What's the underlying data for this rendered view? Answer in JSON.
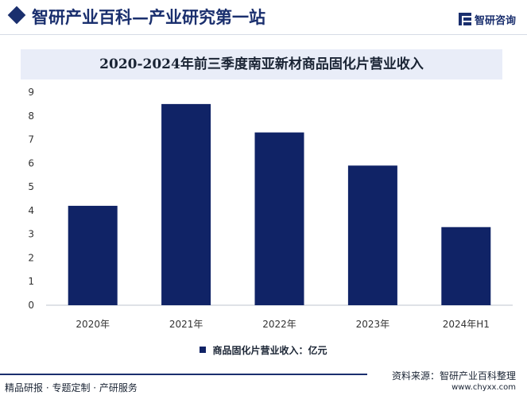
{
  "header": {
    "site_title": "智研产业百科—产业研究第一站",
    "logo_text": "智研咨询",
    "logo_icon": "zhiyan-logo-icon"
  },
  "chart_title": "2020-2024年前三季度南亚新材商品固化片营业收入",
  "colors": {
    "bar": "#102366",
    "brand": "#1a2f6e",
    "axis": "#bfc4cf"
  },
  "chart_data": {
    "type": "bar",
    "title": "2020-2024年前三季度南亚新材商品固化片营业收入",
    "categories": [
      "2020年",
      "2021年",
      "2022年",
      "2023年",
      "2024年H1"
    ],
    "series": [
      {
        "name": "商品固化片营业收入：亿元",
        "values": [
          4.2,
          8.5,
          7.3,
          5.9,
          3.3
        ]
      }
    ],
    "ylim": [
      0,
      9
    ],
    "yticks": [
      0,
      1,
      2,
      3,
      4,
      5,
      6,
      7,
      8,
      9
    ],
    "grid": false,
    "legend": "bottom-center",
    "xlabel": "",
    "ylabel": ""
  },
  "legend_label": "商品固化片营业收入：亿元",
  "footer": {
    "source": "资料来源：智研产业百科整理",
    "tagline": "精品研报 · 专题定制 · 产研服务",
    "url": "www.chyxx.com"
  }
}
